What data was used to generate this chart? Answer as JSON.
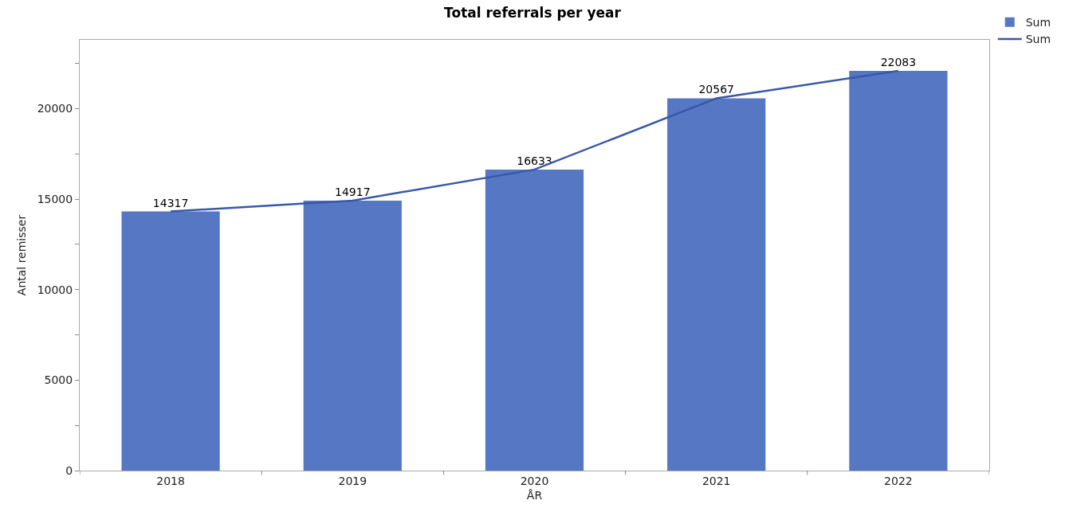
{
  "chart_data": {
    "type": "bar",
    "title": "Total referrals per year",
    "xlabel": "ÅR",
    "ylabel": "Antal remisser",
    "categories": [
      "2018",
      "2019",
      "2020",
      "2021",
      "2022"
    ],
    "series": [
      {
        "name": "Sum",
        "color": "#5677c4",
        "values": [
          14317,
          14917,
          16633,
          20567,
          22083
        ],
        "value_labels": [
          "14317",
          "14917",
          "16633",
          "20567",
          "22083"
        ]
      },
      {
        "name": "Sum",
        "type": "line",
        "color": "#3a58a8",
        "values": [
          14317,
          14917,
          16633,
          20567,
          22083
        ]
      }
    ],
    "ylim": [
      0,
      23800
    ],
    "yticks": [
      0,
      {
        "value": 2500,
        "label": null
      },
      5000,
      {
        "value": 7500,
        "label": null
      },
      10000,
      {
        "value": 12500,
        "label": null
      },
      15000,
      {
        "value": 17500,
        "label": null
      },
      20000,
      {
        "value": 22500,
        "label": null
      }
    ],
    "grid": false,
    "legend": "top right",
    "marker": "none",
    "line_style": "solid"
  }
}
